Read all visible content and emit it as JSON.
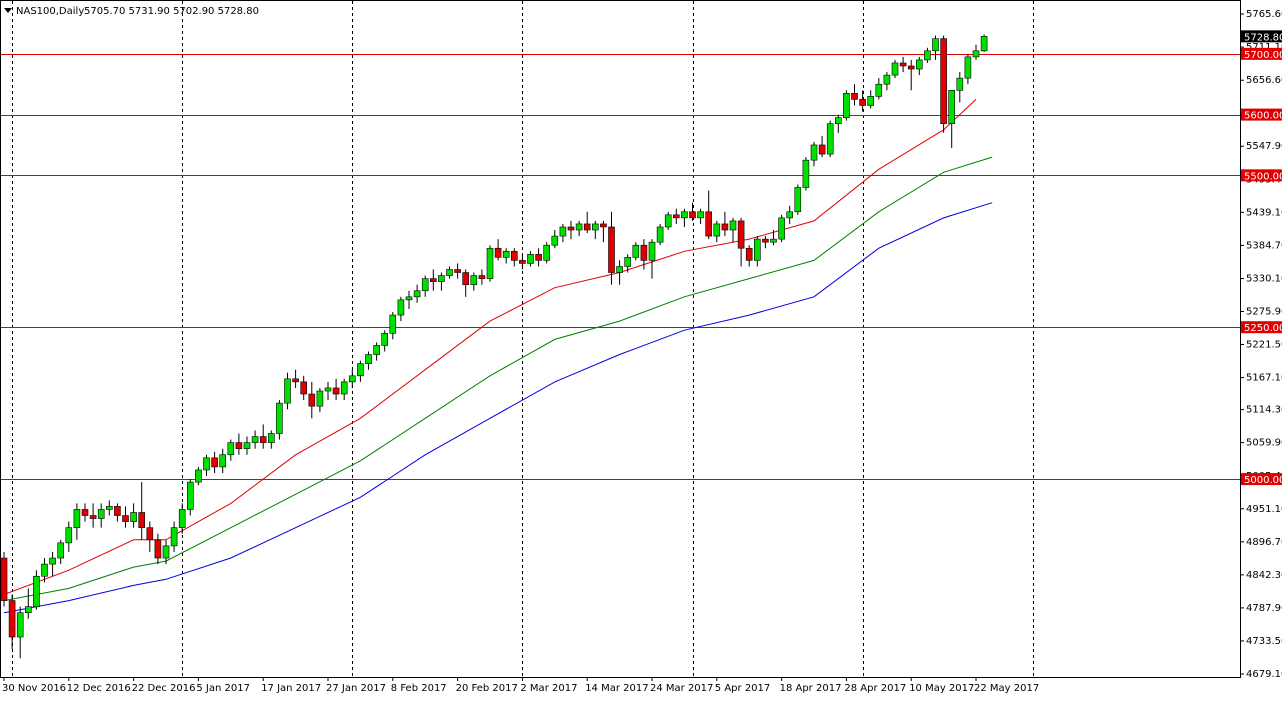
{
  "header": {
    "symbol": "NAS100,Daily",
    "ohlc": "5705.70 5731.90 5702.90 5728.80"
  },
  "current_price_label": "5728.80",
  "colors": {
    "background": "#ffffff",
    "frame": "#000000",
    "grid": "#000000",
    "bull": "#00e000",
    "bear": "#e00000",
    "sr_line": "#e00000",
    "ma_fast": "#e00000",
    "ma_mid": "#008000",
    "ma_slow": "#0000e0"
  },
  "chart_data": {
    "type": "candlestick",
    "title": "NAS100,Daily",
    "ylim": [
      4679.1,
      5765.6
    ],
    "y_ticks": [
      "5765.60",
      "5711.10",
      "5656.60",
      "5602.10",
      "5547.90",
      "5493.40",
      "5439.10",
      "5384.70",
      "5330.10",
      "5275.90",
      "5221.50",
      "5167.10",
      "5114.30",
      "5059.90",
      "5005.40",
      "4951.10",
      "4896.70",
      "4842.30",
      "4787.90",
      "4733.50",
      "4679.10"
    ],
    "x_labels": [
      "30 Nov 2016",
      "12 Dec 2016",
      "22 Dec 2016",
      "5 Jan 2017",
      "17 Jan 2017",
      "27 Jan 2017",
      "8 Feb 2017",
      "20 Feb 2017",
      "2 Mar 2017",
      "14 Mar 2017",
      "24 Mar 2017",
      "5 Apr 2017",
      "18 Apr 2017",
      "28 Apr 2017",
      "10 May 2017",
      "22 May 2017"
    ],
    "x_label_index": [
      0,
      8,
      16,
      24,
      32,
      40,
      48,
      56,
      64,
      72,
      80,
      88,
      96,
      104,
      112,
      120
    ],
    "vgrid_index": [
      1,
      22,
      43,
      64,
      85,
      106,
      127
    ],
    "horizontal_levels": [
      {
        "price": 5700,
        "label": "5700.00"
      },
      {
        "price": 5600,
        "label": "5600.00"
      },
      {
        "price": 5500,
        "label": "5500.00"
      },
      {
        "price": 5250,
        "label": "5250.00"
      },
      {
        "price": 5000,
        "label": "5000.00"
      }
    ],
    "ohlc": [
      [
        4870,
        4880,
        4790,
        4800
      ],
      [
        4800,
        4810,
        4720,
        4740
      ],
      [
        4740,
        4790,
        4705,
        4780
      ],
      [
        4780,
        4820,
        4770,
        4790
      ],
      [
        4790,
        4850,
        4785,
        4840
      ],
      [
        4840,
        4870,
        4830,
        4860
      ],
      [
        4860,
        4880,
        4840,
        4870
      ],
      [
        4870,
        4900,
        4860,
        4895
      ],
      [
        4895,
        4930,
        4880,
        4920
      ],
      [
        4920,
        4960,
        4900,
        4950
      ],
      [
        4950,
        4960,
        4930,
        4940
      ],
      [
        4940,
        4960,
        4920,
        4935
      ],
      [
        4935,
        4960,
        4920,
        4950
      ],
      [
        4950,
        4965,
        4940,
        4955
      ],
      [
        4955,
        4960,
        4930,
        4940
      ],
      [
        4940,
        4955,
        4920,
        4930
      ],
      [
        4930,
        4960,
        4920,
        4945
      ],
      [
        4945,
        4995,
        4900,
        4920
      ],
      [
        4920,
        4930,
        4880,
        4900
      ],
      [
        4900,
        4910,
        4860,
        4870
      ],
      [
        4870,
        4900,
        4860,
        4890
      ],
      [
        4890,
        4930,
        4880,
        4920
      ],
      [
        4920,
        4960,
        4910,
        4950
      ],
      [
        4950,
        5000,
        4940,
        4995
      ],
      [
        4995,
        5020,
        4990,
        5015
      ],
      [
        5015,
        5040,
        5005,
        5035
      ],
      [
        5035,
        5045,
        5010,
        5020
      ],
      [
        5020,
        5050,
        5010,
        5040
      ],
      [
        5040,
        5065,
        5030,
        5060
      ],
      [
        5060,
        5075,
        5040,
        5050
      ],
      [
        5050,
        5070,
        5040,
        5060
      ],
      [
        5060,
        5080,
        5050,
        5070
      ],
      [
        5070,
        5090,
        5050,
        5060
      ],
      [
        5060,
        5080,
        5050,
        5075
      ],
      [
        5075,
        5130,
        5065,
        5125
      ],
      [
        5125,
        5175,
        5115,
        5165
      ],
      [
        5165,
        5180,
        5150,
        5160
      ],
      [
        5160,
        5170,
        5130,
        5140
      ],
      [
        5140,
        5160,
        5100,
        5120
      ],
      [
        5120,
        5150,
        5110,
        5145
      ],
      [
        5145,
        5160,
        5130,
        5150
      ],
      [
        5150,
        5165,
        5130,
        5140
      ],
      [
        5140,
        5165,
        5130,
        5160
      ],
      [
        5160,
        5180,
        5150,
        5170
      ],
      [
        5170,
        5195,
        5160,
        5190
      ],
      [
        5190,
        5210,
        5180,
        5205
      ],
      [
        5205,
        5225,
        5195,
        5220
      ],
      [
        5220,
        5245,
        5210,
        5240
      ],
      [
        5240,
        5275,
        5230,
        5270
      ],
      [
        5270,
        5300,
        5260,
        5295
      ],
      [
        5295,
        5310,
        5280,
        5300
      ],
      [
        5300,
        5320,
        5290,
        5310
      ],
      [
        5310,
        5335,
        5300,
        5330
      ],
      [
        5330,
        5345,
        5310,
        5325
      ],
      [
        5325,
        5340,
        5310,
        5335
      ],
      [
        5335,
        5350,
        5330,
        5345
      ],
      [
        5345,
        5355,
        5330,
        5340
      ],
      [
        5340,
        5345,
        5300,
        5320
      ],
      [
        5320,
        5340,
        5310,
        5335
      ],
      [
        5335,
        5345,
        5320,
        5330
      ],
      [
        5330,
        5385,
        5325,
        5380
      ],
      [
        5380,
        5395,
        5360,
        5365
      ],
      [
        5365,
        5380,
        5355,
        5375
      ],
      [
        5375,
        5380,
        5350,
        5360
      ],
      [
        5360,
        5370,
        5345,
        5355
      ],
      [
        5355,
        5375,
        5350,
        5370
      ],
      [
        5370,
        5380,
        5350,
        5360
      ],
      [
        5360,
        5390,
        5355,
        5385
      ],
      [
        5385,
        5410,
        5380,
        5400
      ],
      [
        5400,
        5420,
        5390,
        5415
      ],
      [
        5415,
        5425,
        5395,
        5410
      ],
      [
        5410,
        5425,
        5400,
        5420
      ],
      [
        5420,
        5440,
        5405,
        5410
      ],
      [
        5410,
        5425,
        5395,
        5420
      ],
      [
        5420,
        5425,
        5390,
        5415
      ],
      [
        5415,
        5440,
        5320,
        5340
      ],
      [
        5340,
        5360,
        5320,
        5350
      ],
      [
        5350,
        5370,
        5340,
        5365
      ],
      [
        5365,
        5390,
        5360,
        5385
      ],
      [
        5385,
        5395,
        5345,
        5360
      ],
      [
        5360,
        5395,
        5330,
        5390
      ],
      [
        5390,
        5420,
        5385,
        5415
      ],
      [
        5415,
        5440,
        5410,
        5435
      ],
      [
        5435,
        5445,
        5420,
        5430
      ],
      [
        5430,
        5445,
        5415,
        5440
      ],
      [
        5440,
        5455,
        5425,
        5430
      ],
      [
        5430,
        5445,
        5420,
        5440
      ],
      [
        5440,
        5475,
        5395,
        5400
      ],
      [
        5400,
        5425,
        5390,
        5420
      ],
      [
        5420,
        5440,
        5400,
        5410
      ],
      [
        5410,
        5430,
        5390,
        5425
      ],
      [
        5425,
        5430,
        5350,
        5380
      ],
      [
        5380,
        5385,
        5350,
        5360
      ],
      [
        5360,
        5400,
        5350,
        5395
      ],
      [
        5395,
        5400,
        5380,
        5390
      ],
      [
        5390,
        5410,
        5385,
        5395
      ],
      [
        5395,
        5435,
        5390,
        5430
      ],
      [
        5430,
        5450,
        5420,
        5440
      ],
      [
        5440,
        5485,
        5435,
        5480
      ],
      [
        5480,
        5530,
        5475,
        5525
      ],
      [
        5525,
        5555,
        5515,
        5550
      ],
      [
        5550,
        5565,
        5530,
        5535
      ],
      [
        5535,
        5590,
        5530,
        5585
      ],
      [
        5585,
        5600,
        5570,
        5595
      ],
      [
        5595,
        5640,
        5590,
        5635
      ],
      [
        5635,
        5650,
        5615,
        5625
      ],
      [
        5625,
        5640,
        5605,
        5615
      ],
      [
        5615,
        5640,
        5610,
        5630
      ],
      [
        5630,
        5660,
        5625,
        5650
      ],
      [
        5650,
        5670,
        5640,
        5665
      ],
      [
        5665,
        5690,
        5660,
        5685
      ],
      [
        5685,
        5695,
        5670,
        5680
      ],
      [
        5680,
        5690,
        5640,
        5675
      ],
      [
        5675,
        5695,
        5665,
        5690
      ],
      [
        5690,
        5710,
        5685,
        5705
      ],
      [
        5705,
        5730,
        5690,
        5725
      ],
      [
        5725,
        5730,
        5570,
        5585
      ],
      [
        5585,
        5640,
        5545,
        5640
      ],
      [
        5640,
        5670,
        5620,
        5660
      ],
      [
        5660,
        5700,
        5650,
        5695
      ],
      [
        5695,
        5715,
        5690,
        5705
      ],
      [
        5705,
        5731.9,
        5702.9,
        5728.8
      ]
    ],
    "ma_fast": [
      [
        0,
        4810
      ],
      [
        8,
        4850
      ],
      [
        16,
        4900
      ],
      [
        20,
        4900
      ],
      [
        28,
        4960
      ],
      [
        36,
        5040
      ],
      [
        44,
        5100
      ],
      [
        52,
        5180
      ],
      [
        60,
        5260
      ],
      [
        68,
        5315
      ],
      [
        76,
        5340
      ],
      [
        84,
        5375
      ],
      [
        92,
        5395
      ],
      [
        100,
        5425
      ],
      [
        108,
        5510
      ],
      [
        116,
        5575
      ],
      [
        120,
        5625
      ]
    ],
    "ma_mid": [
      [
        0,
        4800
      ],
      [
        8,
        4820
      ],
      [
        16,
        4855
      ],
      [
        20,
        4865
      ],
      [
        28,
        4920
      ],
      [
        36,
        4975
      ],
      [
        44,
        5030
      ],
      [
        52,
        5100
      ],
      [
        60,
        5170
      ],
      [
        68,
        5230
      ],
      [
        76,
        5260
      ],
      [
        84,
        5300
      ],
      [
        92,
        5330
      ],
      [
        100,
        5360
      ],
      [
        108,
        5440
      ],
      [
        116,
        5505
      ],
      [
        122,
        5530
      ]
    ],
    "ma_slow": [
      [
        0,
        4780
      ],
      [
        8,
        4800
      ],
      [
        16,
        4825
      ],
      [
        20,
        4835
      ],
      [
        28,
        4870
      ],
      [
        36,
        4920
      ],
      [
        44,
        4970
      ],
      [
        52,
        5040
      ],
      [
        60,
        5100
      ],
      [
        68,
        5160
      ],
      [
        76,
        5205
      ],
      [
        84,
        5245
      ],
      [
        92,
        5270
      ],
      [
        100,
        5300
      ],
      [
        108,
        5380
      ],
      [
        116,
        5430
      ],
      [
        122,
        5455
      ]
    ]
  }
}
